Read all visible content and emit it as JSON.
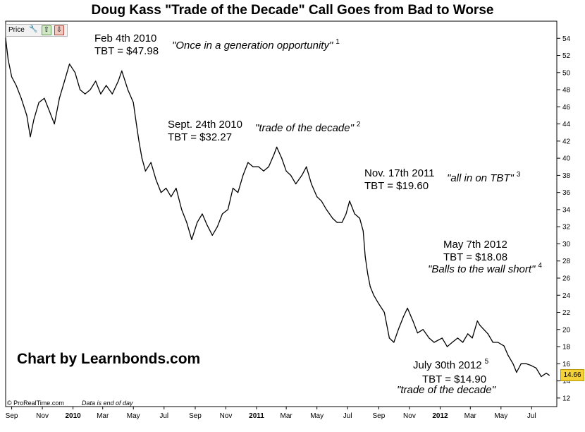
{
  "title": "Doug Kass \"Trade of the Decade\" Call Goes from Bad to Worse",
  "toolbar": {
    "price_label": "Price"
  },
  "credit": "Chart by Learnbonds.com",
  "footer": {
    "source": "© ProRealTime.com",
    "note": "Data is end of day"
  },
  "last_price_label": "14.66",
  "annotations": [
    {
      "date_label": "Feb 4th 2010",
      "price_label": "TBT = $47.98",
      "quote": "\"Once in a generation opportunity\"",
      "ref": "1"
    },
    {
      "date_label": "Sept. 24th 2010",
      "price_label": "TBT = $32.27",
      "quote": "\"trade of the decade\"",
      "ref": "2"
    },
    {
      "date_label": "Nov. 17th 2011",
      "price_label": "TBT = $19.60",
      "quote": "\"all in on TBT\"",
      "ref": "3"
    },
    {
      "date_label": "May 7th 2012",
      "price_label": "TBT = $18.08",
      "quote": "\"Balls to the wall short\"",
      "ref": "4"
    },
    {
      "date_label": "July 30th 2012",
      "price_label": "TBT = $14.90",
      "quote": "\"trade of the decade\"",
      "ref": "5"
    }
  ],
  "colors": {
    "line": "#000000",
    "last_price_bg": "#f3d23a",
    "grid": "#e6e6e6"
  },
  "chart_data": {
    "type": "line",
    "title": "Doug Kass \"Trade of the Decade\" Call Goes from Bad to Worse",
    "xlabel": "",
    "ylabel": "",
    "ylim": [
      11,
      56
    ],
    "yticks": [
      12,
      14,
      16,
      18,
      20,
      22,
      24,
      26,
      28,
      30,
      32,
      34,
      36,
      38,
      40,
      42,
      44,
      46,
      48,
      50,
      52,
      54
    ],
    "xlim": [
      "2009-08-20",
      "2012-08-20"
    ],
    "xticks": [
      {
        "date": "2009-09-01",
        "label": "Sep",
        "bold": false
      },
      {
        "date": "2009-11-01",
        "label": "Nov",
        "bold": false
      },
      {
        "date": "2010-01-01",
        "label": "2010",
        "bold": true
      },
      {
        "date": "2010-03-01",
        "label": "Mar",
        "bold": false
      },
      {
        "date": "2010-05-01",
        "label": "May",
        "bold": false
      },
      {
        "date": "2010-07-01",
        "label": "Jul",
        "bold": false
      },
      {
        "date": "2010-09-01",
        "label": "Sep",
        "bold": false
      },
      {
        "date": "2010-11-01",
        "label": "Nov",
        "bold": false
      },
      {
        "date": "2011-01-01",
        "label": "2011",
        "bold": true
      },
      {
        "date": "2011-03-01",
        "label": "Mar",
        "bold": false
      },
      {
        "date": "2011-05-01",
        "label": "May",
        "bold": false
      },
      {
        "date": "2011-07-01",
        "label": "Jul",
        "bold": false
      },
      {
        "date": "2011-09-01",
        "label": "Sep",
        "bold": false
      },
      {
        "date": "2011-11-01",
        "label": "Nov",
        "bold": false
      },
      {
        "date": "2012-01-01",
        "label": "2012",
        "bold": true
      },
      {
        "date": "2012-03-01",
        "label": "Mar",
        "bold": false
      },
      {
        "date": "2012-05-01",
        "label": "May",
        "bold": false
      },
      {
        "date": "2012-07-01",
        "label": "Jul",
        "bold": false
      }
    ],
    "grid": false,
    "series": [
      {
        "color": "#000000",
        "points": [
          [
            "2009-08-20",
            54.0
          ],
          [
            "2009-08-25",
            51.5
          ],
          [
            "2009-09-01",
            49.5
          ],
          [
            "2009-09-10",
            48.5
          ],
          [
            "2009-09-20",
            47.0
          ],
          [
            "2009-10-01",
            45.0
          ],
          [
            "2009-10-08",
            42.5
          ],
          [
            "2009-10-15",
            44.5
          ],
          [
            "2009-10-25",
            46.5
          ],
          [
            "2009-11-05",
            47.0
          ],
          [
            "2009-11-15",
            45.5
          ],
          [
            "2009-11-25",
            44.0
          ],
          [
            "2009-12-05",
            47.0
          ],
          [
            "2009-12-15",
            49.0
          ],
          [
            "2009-12-25",
            51.0
          ],
          [
            "2010-01-05",
            50.0
          ],
          [
            "2010-01-15",
            48.0
          ],
          [
            "2010-01-25",
            47.5
          ],
          [
            "2010-02-04",
            47.98
          ],
          [
            "2010-02-15",
            49.0
          ],
          [
            "2010-02-25",
            47.5
          ],
          [
            "2010-03-08",
            48.5
          ],
          [
            "2010-03-20",
            47.5
          ],
          [
            "2010-04-01",
            49.0
          ],
          [
            "2010-04-08",
            50.2
          ],
          [
            "2010-04-20",
            48.0
          ],
          [
            "2010-05-01",
            46.5
          ],
          [
            "2010-05-07",
            44.0
          ],
          [
            "2010-05-12",
            42.0
          ],
          [
            "2010-05-18",
            40.0
          ],
          [
            "2010-05-25",
            38.5
          ],
          [
            "2010-06-05",
            39.5
          ],
          [
            "2010-06-15",
            37.5
          ],
          [
            "2010-06-25",
            36.0
          ],
          [
            "2010-07-05",
            36.5
          ],
          [
            "2010-07-15",
            35.5
          ],
          [
            "2010-07-25",
            36.5
          ],
          [
            "2010-08-05",
            34.0
          ],
          [
            "2010-08-15",
            32.5
          ],
          [
            "2010-08-25",
            30.5
          ],
          [
            "2010-09-05",
            32.5
          ],
          [
            "2010-09-15",
            33.5
          ],
          [
            "2010-09-24",
            32.27
          ],
          [
            "2010-10-05",
            31.0
          ],
          [
            "2010-10-15",
            32.0
          ],
          [
            "2010-10-25",
            33.5
          ],
          [
            "2010-11-05",
            34.0
          ],
          [
            "2010-11-15",
            36.5
          ],
          [
            "2010-11-25",
            36.0
          ],
          [
            "2010-12-05",
            38.0
          ],
          [
            "2010-12-15",
            39.5
          ],
          [
            "2010-12-25",
            39.0
          ],
          [
            "2011-01-05",
            39.0
          ],
          [
            "2011-01-15",
            38.5
          ],
          [
            "2011-01-25",
            39.0
          ],
          [
            "2011-02-05",
            40.5
          ],
          [
            "2011-02-10",
            41.3
          ],
          [
            "2011-02-20",
            40.0
          ],
          [
            "2011-03-01",
            38.5
          ],
          [
            "2011-03-10",
            38.0
          ],
          [
            "2011-03-20",
            37.0
          ],
          [
            "2011-04-01",
            38.0
          ],
          [
            "2011-04-10",
            39.0
          ],
          [
            "2011-04-20",
            37.0
          ],
          [
            "2011-05-01",
            35.5
          ],
          [
            "2011-05-10",
            35.0
          ],
          [
            "2011-05-20",
            34.0
          ],
          [
            "2011-06-01",
            33.0
          ],
          [
            "2011-06-10",
            32.5
          ],
          [
            "2011-06-20",
            32.5
          ],
          [
            "2011-06-28",
            33.5
          ],
          [
            "2011-07-05",
            35.0
          ],
          [
            "2011-07-15",
            33.5
          ],
          [
            "2011-07-25",
            33.0
          ],
          [
            "2011-08-01",
            31.5
          ],
          [
            "2011-08-05",
            28.5
          ],
          [
            "2011-08-10",
            26.5
          ],
          [
            "2011-08-15",
            25.0
          ],
          [
            "2011-08-22",
            24.0
          ],
          [
            "2011-09-01",
            23.0
          ],
          [
            "2011-09-12",
            22.0
          ],
          [
            "2011-09-22",
            19.0
          ],
          [
            "2011-10-01",
            18.5
          ],
          [
            "2011-10-10",
            20.0
          ],
          [
            "2011-10-20",
            21.5
          ],
          [
            "2011-10-28",
            22.5
          ],
          [
            "2011-11-08",
            21.0
          ],
          [
            "2011-11-17",
            19.6
          ],
          [
            "2011-11-28",
            20.0
          ],
          [
            "2011-12-10",
            19.0
          ],
          [
            "2011-12-20",
            18.5
          ],
          [
            "2012-01-05",
            19.0
          ],
          [
            "2012-01-15",
            18.0
          ],
          [
            "2012-01-25",
            18.5
          ],
          [
            "2012-02-05",
            19.0
          ],
          [
            "2012-02-15",
            18.5
          ],
          [
            "2012-02-25",
            19.5
          ],
          [
            "2012-03-05",
            19.0
          ],
          [
            "2012-03-15",
            21.0
          ],
          [
            "2012-03-20",
            20.5
          ],
          [
            "2012-03-28",
            20.0
          ],
          [
            "2012-04-05",
            19.5
          ],
          [
            "2012-04-15",
            18.5
          ],
          [
            "2012-04-25",
            18.5
          ],
          [
            "2012-05-07",
            18.08
          ],
          [
            "2012-05-15",
            17.0
          ],
          [
            "2012-05-25",
            16.0
          ],
          [
            "2012-06-01",
            15.0
          ],
          [
            "2012-06-10",
            16.0
          ],
          [
            "2012-06-20",
            16.0
          ],
          [
            "2012-06-30",
            15.8
          ],
          [
            "2012-07-10",
            15.5
          ],
          [
            "2012-07-20",
            14.5
          ],
          [
            "2012-07-30",
            14.9
          ],
          [
            "2012-08-05",
            14.66
          ]
        ]
      }
    ]
  }
}
